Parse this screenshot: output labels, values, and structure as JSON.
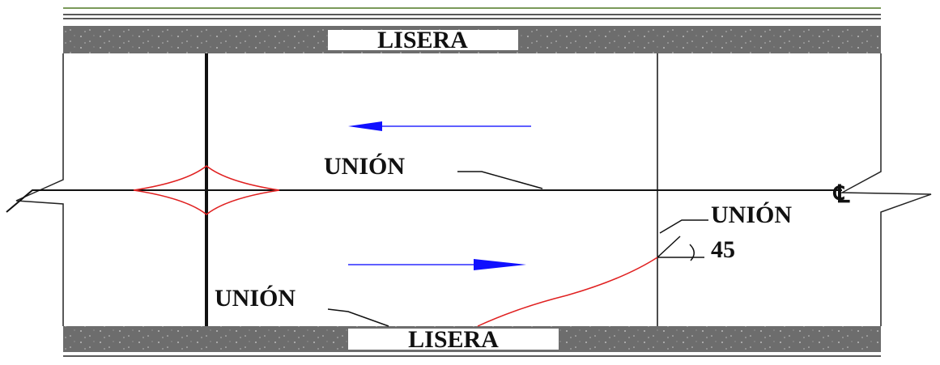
{
  "labels": {
    "top_band": "LISERA",
    "bottom_band": "LISERA",
    "center_joint": "UNIÓN",
    "diagonal_joint": "UNIÓN",
    "bottom_joint": "UNIÓN",
    "angle": "45",
    "centerline": "℄"
  }
}
